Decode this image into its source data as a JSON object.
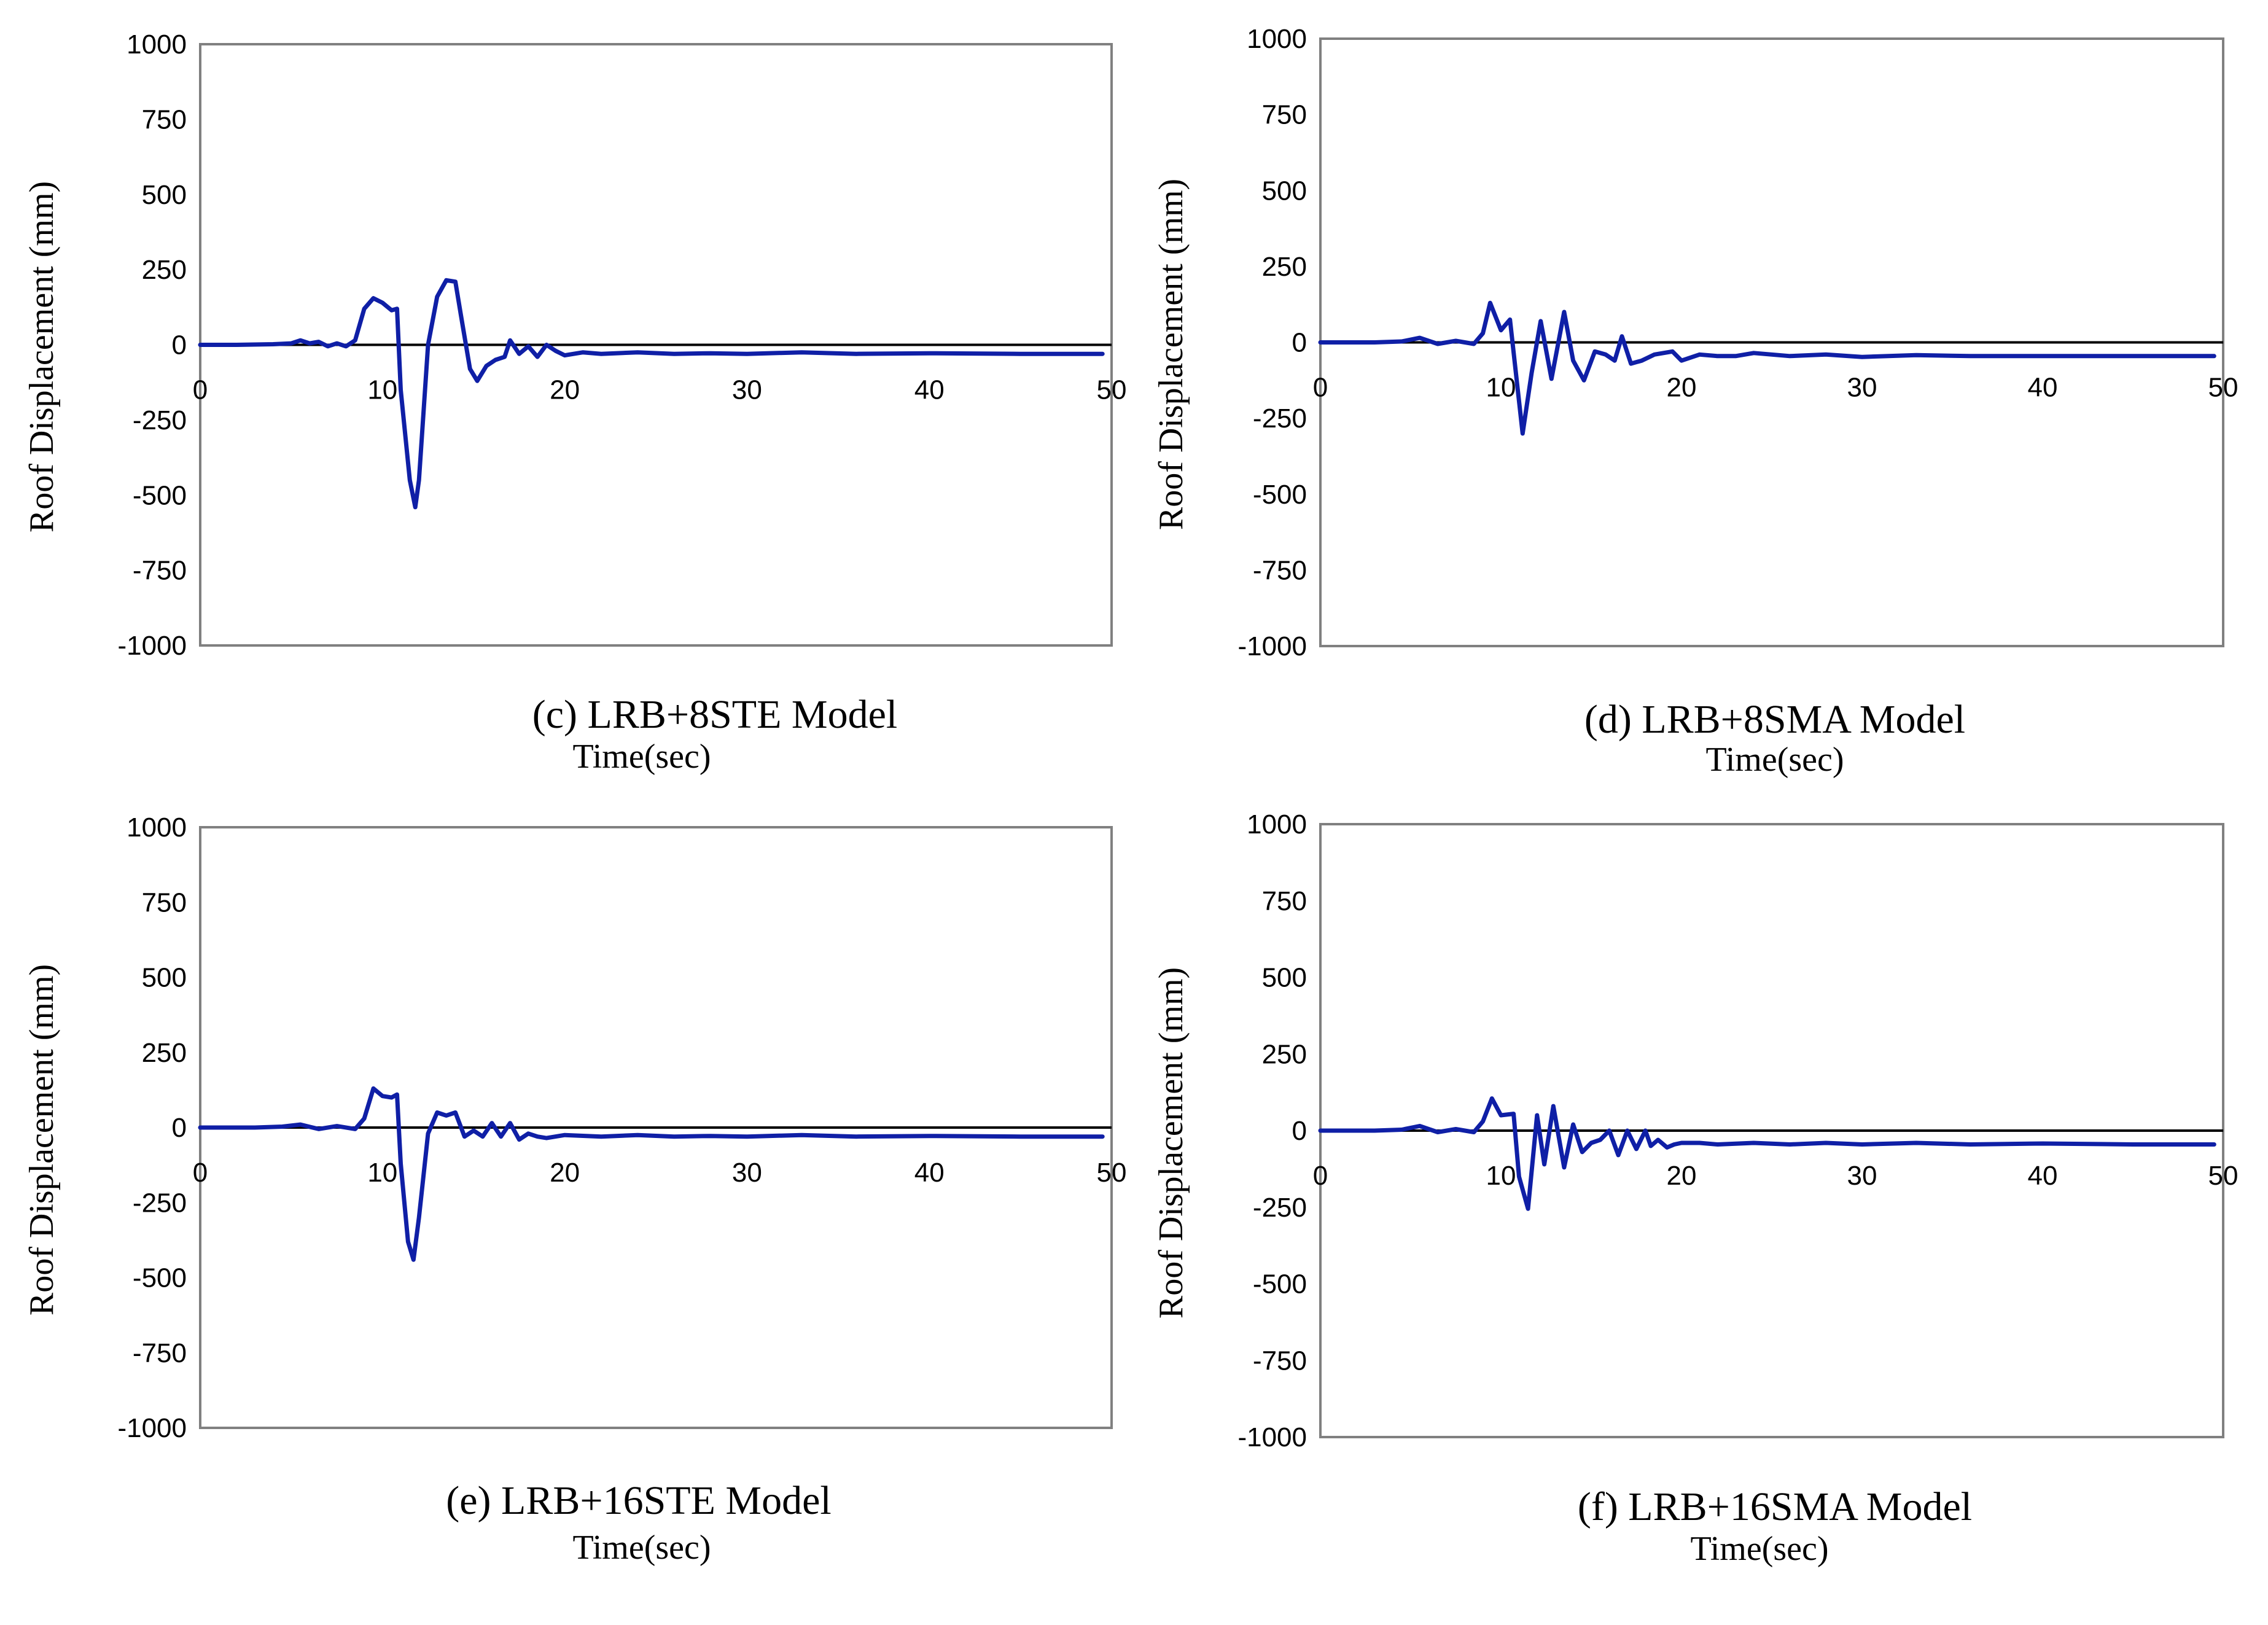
{
  "chart_data": [
    {
      "type": "line",
      "caption": "(c) LRB+8STE Model",
      "xlabel": "Time(sec)",
      "ylabel": "Roof Displacement (mm)",
      "xlim": [
        0,
        50
      ],
      "ylim": [
        -1000,
        1000
      ],
      "xticks": [
        "0",
        "10",
        "20",
        "30",
        "40",
        "50"
      ],
      "yticks": [
        "1000",
        "750",
        "500",
        "250",
        "0",
        "-250",
        "-500",
        "-750",
        "-1000"
      ],
      "grid": false,
      "series": [
        {
          "name": "LRB+8STE",
          "color": "#0f1fa6",
          "x": [
            0,
            2,
            4,
            5,
            5.5,
            6,
            6.5,
            7,
            7.5,
            8,
            8.5,
            9,
            9.5,
            10,
            10.5,
            10.8,
            11,
            11.5,
            11.8,
            12,
            12.5,
            13,
            13.5,
            14,
            14.3,
            14.8,
            15.2,
            15.7,
            16.2,
            16.7,
            17,
            17.5,
            18,
            18.5,
            19,
            19.5,
            20,
            21,
            22,
            24,
            26,
            28,
            30,
            33,
            36,
            40,
            45,
            49.5
          ],
          "y": [
            0,
            0,
            2,
            5,
            15,
            5,
            10,
            -5,
            5,
            -5,
            15,
            120,
            155,
            140,
            115,
            120,
            -150,
            -450,
            -540,
            -450,
            0,
            160,
            215,
            210,
            100,
            -80,
            -120,
            -70,
            -50,
            -40,
            15,
            -30,
            -5,
            -40,
            0,
            -20,
            -35,
            -25,
            -30,
            -25,
            -30,
            -28,
            -30,
            -25,
            -30,
            -28,
            -30,
            -30
          ]
        }
      ]
    },
    {
      "type": "line",
      "caption": "(d) LRB+8SMA Model",
      "xlabel": "Time(sec)",
      "ylabel": "Roof Displacement (mm)",
      "xlim": [
        0,
        50
      ],
      "ylim": [
        -1000,
        1000
      ],
      "xticks": [
        "0",
        "10",
        "20",
        "30",
        "40",
        "50"
      ],
      "yticks": [
        "1000",
        "750",
        "500",
        "250",
        "0",
        "-250",
        "-500",
        "-750",
        "-1000"
      ],
      "grid": false,
      "series": [
        {
          "name": "LRB+8SMA",
          "color": "#0f1fa6",
          "x": [
            0,
            3,
            4.5,
            5.5,
            6.5,
            7.5,
            8.5,
            9,
            9.4,
            10,
            10.5,
            11.2,
            11.7,
            12.2,
            12.8,
            13.5,
            14,
            14.6,
            15.2,
            15.8,
            16.3,
            16.7,
            17.2,
            17.8,
            18.5,
            19.5,
            20,
            21,
            22,
            23,
            24,
            26,
            28,
            30,
            33,
            36,
            40,
            45,
            49.5
          ],
          "y": [
            0,
            0,
            3,
            15,
            -5,
            5,
            -5,
            30,
            130,
            40,
            75,
            -300,
            -100,
            70,
            -120,
            100,
            -60,
            -125,
            -30,
            -40,
            -60,
            20,
            -70,
            -60,
            -40,
            -30,
            -60,
            -40,
            -45,
            -45,
            -35,
            -45,
            -40,
            -48,
            -42,
            -45,
            -45,
            -45,
            -45
          ]
        }
      ]
    },
    {
      "type": "line",
      "caption": "(e) LRB+16STE Model",
      "xlabel": "Time(sec)",
      "ylabel": "Roof Displacement (mm)",
      "xlim": [
        0,
        50
      ],
      "ylim": [
        -1000,
        1000
      ],
      "xticks": [
        "0",
        "10",
        "20",
        "30",
        "40",
        "50"
      ],
      "yticks": [
        "1000",
        "750",
        "500",
        "250",
        "0",
        "-250",
        "-500",
        "-750",
        "-1000"
      ],
      "grid": false,
      "series": [
        {
          "name": "LRB+16STE",
          "color": "#0f1fa6",
          "x": [
            0,
            3,
            4.5,
            5.5,
            6.5,
            7.5,
            8.5,
            9,
            9.5,
            10,
            10.5,
            10.8,
            11,
            11.4,
            11.7,
            12,
            12.5,
            13,
            13.5,
            14,
            14.5,
            15,
            15.5,
            16,
            16.5,
            17,
            17.5,
            18,
            18.5,
            19,
            20,
            22,
            24,
            26,
            28,
            30,
            33,
            36,
            40,
            45,
            49.5
          ],
          "y": [
            0,
            0,
            3,
            10,
            -5,
            5,
            -5,
            30,
            130,
            105,
            100,
            110,
            -120,
            -380,
            -440,
            -300,
            -20,
            50,
            40,
            50,
            -30,
            -10,
            -30,
            15,
            -30,
            15,
            -40,
            -20,
            -30,
            -35,
            -25,
            -30,
            -25,
            -30,
            -28,
            -30,
            -25,
            -30,
            -28,
            -30,
            -30
          ]
        }
      ]
    },
    {
      "type": "line",
      "caption": "(f) LRB+16SMA Model",
      "xlabel": "Time(sec)",
      "ylabel": "Roof Displacement (mm)",
      "xlim": [
        0,
        50
      ],
      "ylim": [
        -1000,
        1000
      ],
      "xticks": [
        "0",
        "10",
        "20",
        "30",
        "40",
        "50"
      ],
      "yticks": [
        "1000",
        "750",
        "500",
        "250",
        "0",
        "-250",
        "-500",
        "-750",
        "-1000"
      ],
      "grid": false,
      "series": [
        {
          "name": "LRB+16SMA",
          "color": "#0f1fa6",
          "x": [
            0,
            3,
            4.5,
            5.5,
            6.5,
            7.5,
            8.5,
            9,
            9.5,
            10,
            10.7,
            11,
            11.5,
            12,
            12.4,
            12.9,
            13.5,
            14,
            14.5,
            15,
            15.5,
            16,
            16.5,
            17,
            17.5,
            18,
            18.3,
            18.7,
            19.2,
            19.6,
            20,
            21,
            22,
            24,
            26,
            28,
            30,
            33,
            36,
            40,
            45,
            49.5
          ],
          "y": [
            0,
            0,
            3,
            15,
            -5,
            5,
            -5,
            30,
            105,
            50,
            55,
            -150,
            -255,
            50,
            -110,
            80,
            -120,
            20,
            -70,
            -40,
            -30,
            0,
            -80,
            0,
            -60,
            0,
            -50,
            -30,
            -55,
            -45,
            -40,
            -40,
            -45,
            -40,
            -45,
            -40,
            -45,
            -40,
            -45,
            -42,
            -45,
            -45
          ]
        }
      ]
    }
  ]
}
